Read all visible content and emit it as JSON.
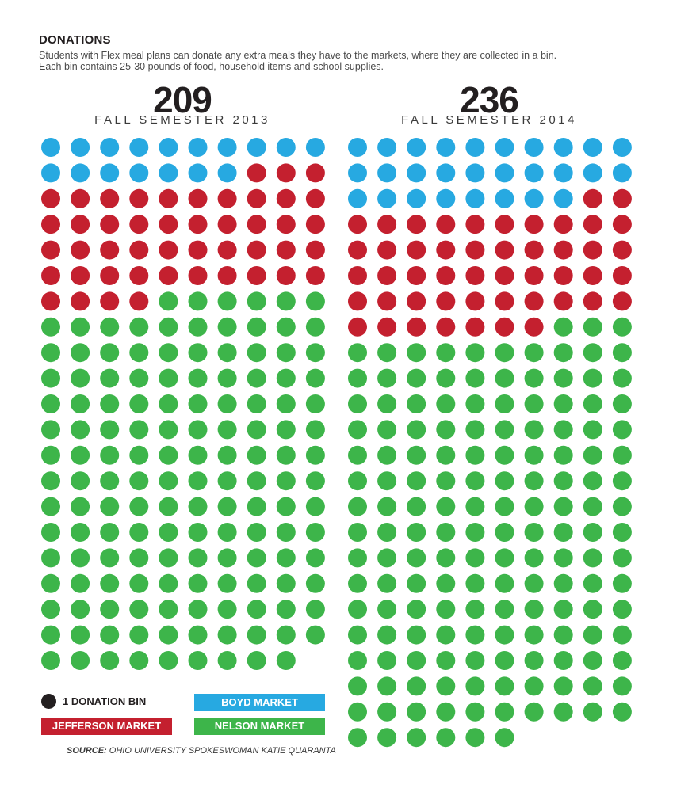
{
  "header": {
    "title": "DONATIONS",
    "subtitle_lines": [
      "Students with Flex meal plans can donate any extra meals they have to the markets, where they are collected in a bin.",
      "Each bin contains 25-30 pounds of food, household items and school supplies."
    ]
  },
  "chart_data": {
    "type": "unit",
    "unit_label": "1 DONATION BIN",
    "columns_per_panel": 10,
    "panels": [
      {
        "total": "209",
        "label": "FALL SEMESTER 2013",
        "counts": {
          "boyd": 17,
          "jefferson": 47,
          "nelson": 145
        }
      },
      {
        "total": "236",
        "label": "FALL SEMESTER 2014",
        "counts": {
          "boyd": 28,
          "jefferson": 49,
          "nelson": 159
        }
      }
    ],
    "categories": [
      {
        "key": "boyd",
        "name": "BOYD MARKET",
        "color": "#27a9e1"
      },
      {
        "key": "jefferson",
        "name": "JEFFERSON MARKET",
        "color": "#c4202f"
      },
      {
        "key": "nelson",
        "name": "NELSON MARKET",
        "color": "#3db54a"
      }
    ]
  },
  "legend": {
    "unit_label": "1 DONATION BIN",
    "boyd": "BOYD MARKET",
    "jefferson": "JEFFERSON MARKET",
    "nelson": "NELSON MARKET"
  },
  "source": {
    "label": "SOURCE:",
    "text": "OHIO UNIVERSITY SPOKESWOMAN KATIE QUARANTA"
  }
}
